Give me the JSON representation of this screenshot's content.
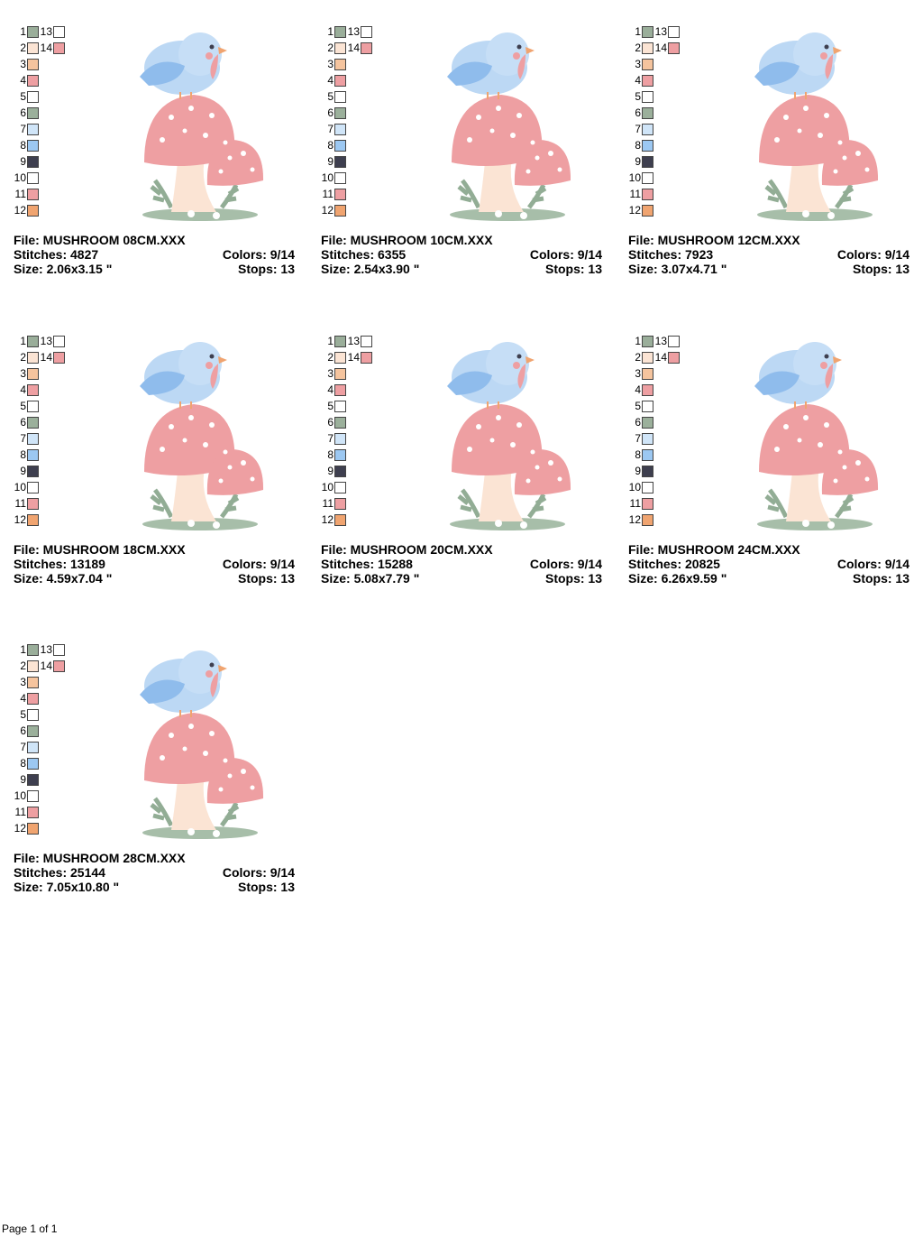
{
  "palette": [
    {
      "number": 1,
      "color": "#9aae9a"
    },
    {
      "number": 2,
      "color": "#fbe4d4"
    },
    {
      "number": 3,
      "color": "#f5c49e"
    },
    {
      "number": 4,
      "color": "#ee9fa2"
    },
    {
      "number": 5,
      "color": "#ffffff"
    },
    {
      "number": 6,
      "color": "#9bb09b"
    },
    {
      "number": 7,
      "color": "#d0e5f8"
    },
    {
      "number": 8,
      "color": "#9cc8f2"
    },
    {
      "number": 9,
      "color": "#3e3f4f"
    },
    {
      "number": 10,
      "color": "#ffffff"
    },
    {
      "number": 11,
      "color": "#ee9fa2"
    },
    {
      "number": 12,
      "color": "#f0a470"
    },
    {
      "number": 13,
      "color": "#ffffff"
    },
    {
      "number": 14,
      "color": "#ee9fa2"
    }
  ],
  "designs": [
    {
      "file": "File: MUSHROOM 08CM.XXX",
      "stitches": "Stitches: 4827",
      "colors": "Colors: 9/14",
      "size": "Size: 2.06x3.15 \"",
      "stops": "Stops: 13"
    },
    {
      "file": "File: MUSHROOM 10CM.XXX",
      "stitches": "Stitches: 6355",
      "colors": "Colors: 9/14",
      "size": "Size: 2.54x3.90 \"",
      "stops": "Stops: 13"
    },
    {
      "file": "File: MUSHROOM 12CM.XXX",
      "stitches": "Stitches: 7923",
      "colors": "Colors: 9/14",
      "size": "Size: 3.07x4.71 \"",
      "stops": "Stops: 13"
    },
    {
      "file": "File: MUSHROOM 18CM.XXX",
      "stitches": "Stitches: 13189",
      "colors": "Colors: 9/14",
      "size": "Size: 4.59x7.04 \"",
      "stops": "Stops: 13"
    },
    {
      "file": "File: MUSHROOM 20CM.XXX",
      "stitches": "Stitches: 15288",
      "colors": "Colors: 9/14",
      "size": "Size: 5.08x7.79 \"",
      "stops": "Stops: 13"
    },
    {
      "file": "File: MUSHROOM 24CM.XXX",
      "stitches": "Stitches: 20825",
      "colors": "Colors: 9/14",
      "size": "Size: 6.26x9.59 \"",
      "stops": "Stops: 13"
    },
    {
      "file": "File: MUSHROOM 28CM.XXX",
      "stitches": "Stitches: 25144",
      "colors": "Colors: 9/14",
      "size": "Size: 7.05x10.80 \"",
      "stops": "Stops: 13"
    }
  ],
  "footer": "Page 1 of 1"
}
